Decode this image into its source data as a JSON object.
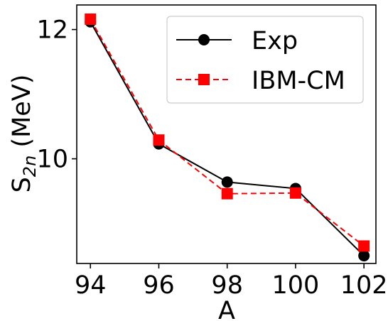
{
  "chart_data": {
    "type": "line",
    "xlabel": "A",
    "ylabel_main": "S",
    "ylabel_sub": "2n",
    "ylabel_unit": " (MeV)",
    "x": [
      94,
      96,
      98,
      100,
      102
    ],
    "x_ticks": [
      "94",
      "96",
      "98",
      "100",
      "102"
    ],
    "y_ticks": [
      {
        "value": 10,
        "label": "10"
      },
      {
        "value": 12,
        "label": "12"
      }
    ],
    "xlim": [
      93.6,
      102.35
    ],
    "ylim": [
      8.38,
      12.38
    ],
    "grid": false,
    "legend_position": "top-right",
    "series": [
      {
        "name": "Exp",
        "values": [
          12.12,
          10.23,
          9.64,
          9.54,
          8.5
        ],
        "color": "#000000",
        "marker": "circle",
        "linestyle": "solid"
      },
      {
        "name": "IBM-CM",
        "values": [
          12.16,
          10.29,
          9.46,
          9.47,
          8.65
        ],
        "color": "#ff0000",
        "marker": "square",
        "linestyle": "dashed"
      }
    ]
  }
}
